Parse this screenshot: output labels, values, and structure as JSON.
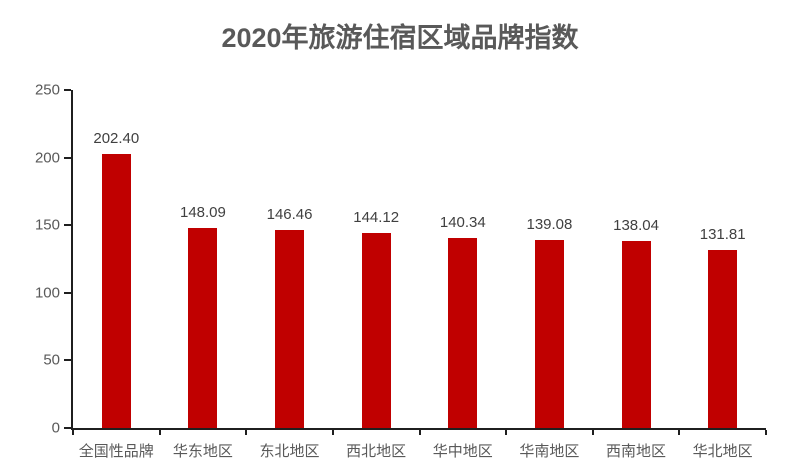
{
  "chart_data": {
    "type": "bar",
    "title": "2020年旅游住宿区域品牌指数",
    "categories": [
      "全国性品牌",
      "华东地区",
      "东北地区",
      "西北地区",
      "华中地区",
      "华南地区",
      "西南地区",
      "华北地区"
    ],
    "values": [
      202.4,
      148.09,
      146.46,
      144.12,
      140.34,
      139.08,
      138.04,
      131.81
    ],
    "value_labels": [
      "202.40",
      "148.09",
      "146.46",
      "144.12",
      "140.34",
      "139.08",
      "138.04",
      "131.81"
    ],
    "xlabel": "",
    "ylabel": "",
    "ylim": [
      0,
      250
    ],
    "yticks": [
      0,
      50,
      100,
      150,
      200,
      250
    ],
    "grid": false,
    "legend": false,
    "data_labels": true,
    "colors": {
      "bar": "#C00000",
      "axis": "#1f1f1f",
      "title": "#595959",
      "tick_label": "#595959",
      "value_label": "#404040",
      "background": "#ffffff"
    }
  }
}
